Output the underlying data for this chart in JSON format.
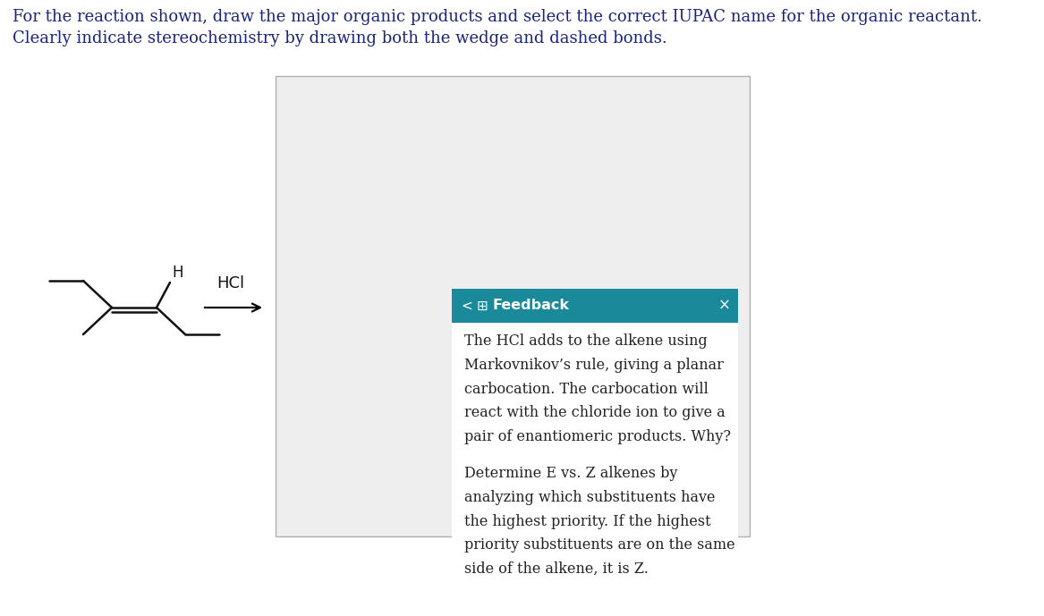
{
  "title_line1": "For the reaction shown, draw the major organic products and select the correct IUPAC name for the organic reactant.",
  "title_line2": "Clearly indicate stereochemistry by drawing both the wedge and dashed bonds.",
  "hcl_label": "HCl",
  "feedback_header": "Feedback",
  "feedback_text1": "The HCl adds to the alkene using\nMarkovnikov’s rule, giving a planar\ncarbocation. The carbocation will\nreact with the chloride ion to give a\npair of enantiomeric products. Why?",
  "feedback_text2": "Determine E vs. Z alkenes by\nanalyzing which substituents have\nthe highest priority. If the highest\npriority substituents are on the same\nside of the alkene, it is Z.",
  "teal_color": "#1a8a9a",
  "bg_white": "#ffffff",
  "panel_bg": "#eeeeee",
  "text_color": "#222222",
  "title_color": "#1a237e",
  "mol_lw": 1.8,
  "mol_color": "#111111"
}
